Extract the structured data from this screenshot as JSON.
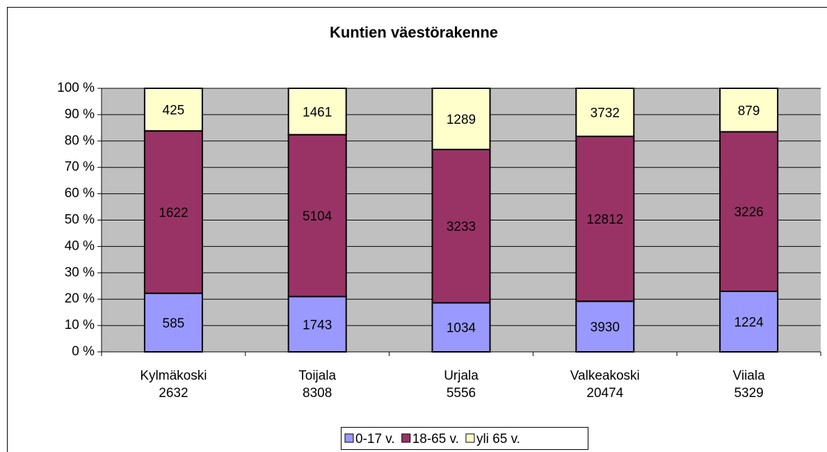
{
  "chart_data": {
    "type": "stacked_percent_bar",
    "title": "Kuntien väestörakenne",
    "categories": [
      "Kylmäkoski",
      "Toijala",
      "Urjala",
      "Valkeakoski",
      "Viiala"
    ],
    "category_totals": [
      2632,
      8308,
      5556,
      20474,
      5329
    ],
    "series": [
      {
        "name": "0-17 v.",
        "color": "#9999ff",
        "values": [
          585,
          1743,
          1034,
          3930,
          1224
        ]
      },
      {
        "name": "18-65 v.",
        "color": "#993366",
        "values": [
          1622,
          5104,
          3233,
          12812,
          3226
        ]
      },
      {
        "name": "yli 65 v.",
        "color": "#ffffcc",
        "values": [
          425,
          1461,
          1289,
          3732,
          879
        ]
      }
    ],
    "ylim": [
      0,
      100
    ],
    "yticks": [
      {
        "value": 0,
        "label": "0 %"
      },
      {
        "value": 10,
        "label": "10 %"
      },
      {
        "value": 20,
        "label": "20 %"
      },
      {
        "value": 30,
        "label": "30 %"
      },
      {
        "value": 40,
        "label": "40 %"
      },
      {
        "value": 50,
        "label": "50 %"
      },
      {
        "value": 60,
        "label": "60 %"
      },
      {
        "value": 70,
        "label": "70 %"
      },
      {
        "value": 80,
        "label": "80 %"
      },
      {
        "value": 90,
        "label": "90 %"
      },
      {
        "value": 100,
        "label": "100 %"
      }
    ],
    "grid": true,
    "legend": "bottom",
    "plot_background": "#c0c0c0"
  }
}
